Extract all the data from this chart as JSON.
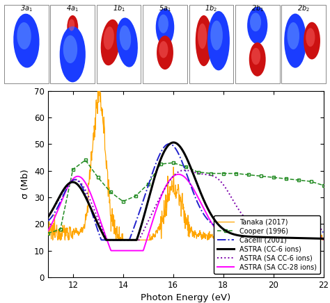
{
  "title": "",
  "xlabel": "Photon Energy (eV)",
  "ylabel": "σ (Mb)",
  "xlim": [
    11,
    22
  ],
  "ylim": [
    0,
    70
  ],
  "xticks": [
    12,
    14,
    16,
    18,
    20,
    22
  ],
  "yticks": [
    0,
    10,
    20,
    30,
    40,
    50,
    60,
    70
  ],
  "legend_entries": [
    "Tanaka (2017)",
    "Cooper (1996)",
    "Cacelli (2001)",
    "ASTRA (CC-6 ions)",
    "ASTRA (SA CC-6 ions)",
    "ASTRA (SA CC-28 ions)"
  ],
  "colors": {
    "tanaka": "#FFA500",
    "cooper": "#228B22",
    "cacelli": "#2222CC",
    "astra_cc6": "#000000",
    "astra_sa_cc6": "#7B00AA",
    "astra_sa_cc28": "#FF00FF"
  },
  "orbital_labels": [
    "3a1",
    "4a1",
    "1b1",
    "5a1",
    "1b2",
    "2b1",
    "2b2"
  ],
  "orbital_labels_fmt": [
    "3$a_1$",
    "4$a_1$",
    "1$b_1$",
    "5$a_1$",
    "1$b_2$",
    "2$b_1$",
    "2$b_2$"
  ],
  "cooper_x": [
    11.0,
    11.5,
    12.0,
    12.5,
    13.0,
    13.5,
    14.0,
    14.5,
    15.0,
    15.5,
    16.0,
    16.5,
    17.0,
    17.5,
    18.0,
    18.5,
    19.0,
    19.5,
    20.0,
    20.5,
    21.0,
    21.5,
    22.0
  ],
  "cooper_y": [
    16.5,
    18.0,
    40.5,
    44.0,
    37.5,
    32.0,
    28.5,
    30.5,
    35.0,
    42.5,
    43.0,
    41.5,
    39.5,
    39.0,
    39.0,
    39.0,
    38.5,
    38.0,
    37.5,
    37.0,
    36.5,
    36.0,
    34.5
  ]
}
